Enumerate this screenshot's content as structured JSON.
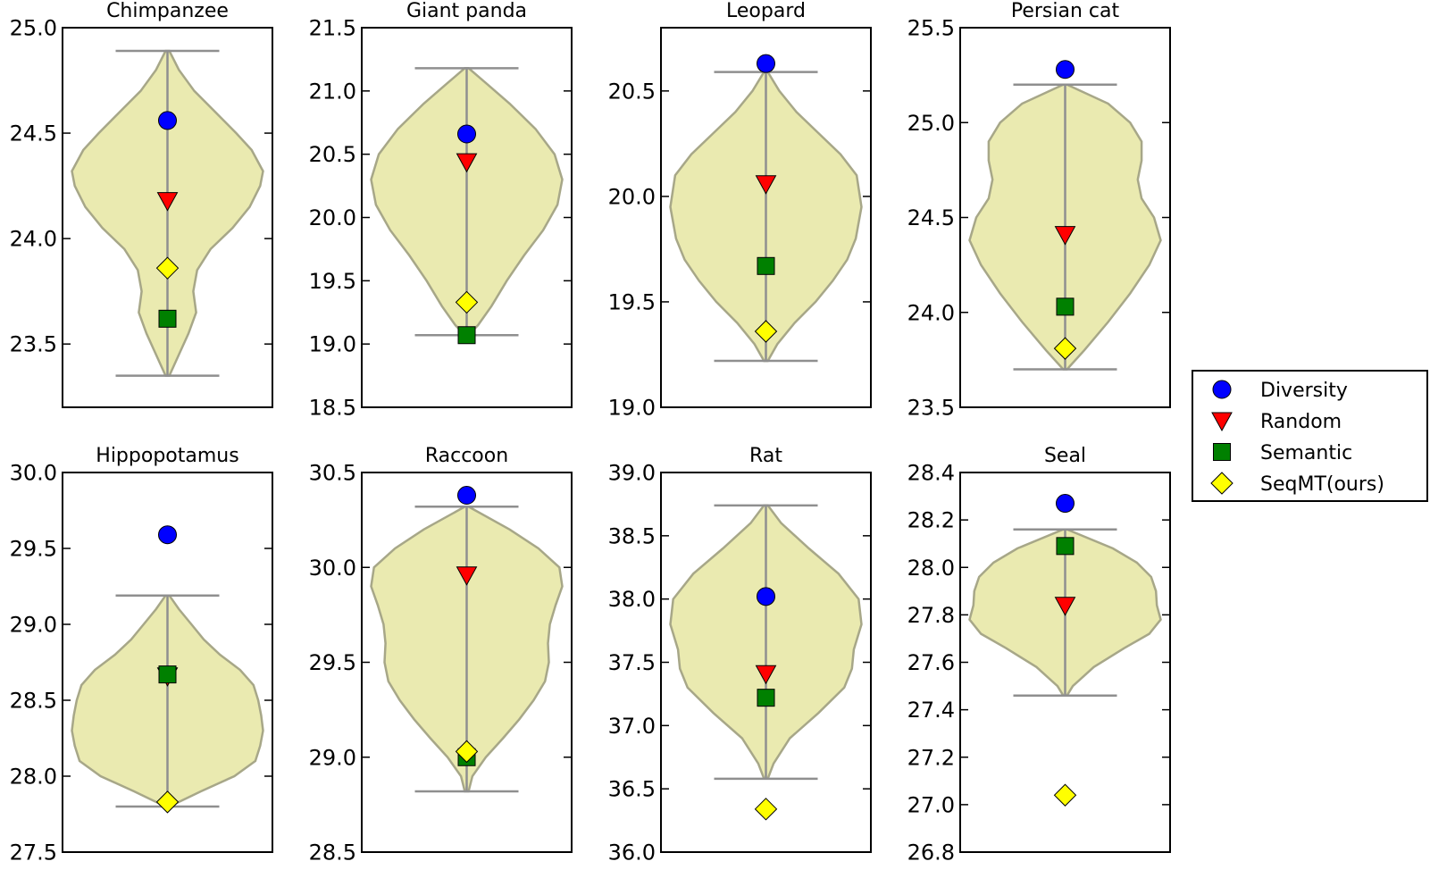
{
  "legend": {
    "entries": [
      {
        "label": "Diversity",
        "marker": "circle",
        "color": "#0000ff"
      },
      {
        "label": "Random",
        "marker": "triangle-down",
        "color": "#ff0000"
      },
      {
        "label": "Semantic",
        "marker": "square",
        "color": "#008000"
      },
      {
        "label": "SeqMT(ours)",
        "marker": "diamond",
        "color": "#ffff00"
      }
    ]
  },
  "chart_data": [
    {
      "type": "violin",
      "title": "Chimpanzee",
      "ylim": [
        23.2,
        25.0
      ],
      "yticks": [
        23.5,
        24.0,
        24.5,
        25.0
      ],
      "tick_decimals": 1,
      "distribution": {
        "min": 23.35,
        "max": 24.89,
        "profile": [
          [
            23.35,
            0.02
          ],
          [
            23.45,
            0.12
          ],
          [
            23.55,
            0.22
          ],
          [
            23.65,
            0.3
          ],
          [
            23.75,
            0.27
          ],
          [
            23.85,
            0.31
          ],
          [
            23.95,
            0.45
          ],
          [
            24.05,
            0.68
          ],
          [
            24.15,
            0.86
          ],
          [
            24.25,
            0.97
          ],
          [
            24.32,
            1.0
          ],
          [
            24.42,
            0.88
          ],
          [
            24.5,
            0.72
          ],
          [
            24.6,
            0.5
          ],
          [
            24.7,
            0.28
          ],
          [
            24.8,
            0.12
          ],
          [
            24.89,
            0.02
          ]
        ]
      },
      "points": {
        "Diversity": 24.56,
        "Random": 24.18,
        "Semantic": 23.62,
        "SeqMT(ours)": 23.86
      }
    },
    {
      "type": "violin",
      "title": "Giant panda",
      "ylim": [
        18.5,
        21.5
      ],
      "yticks": [
        18.5,
        19.0,
        19.5,
        20.0,
        20.5,
        21.0,
        21.5
      ],
      "tick_decimals": 1,
      "distribution": {
        "min": 19.07,
        "max": 21.18,
        "profile": [
          [
            19.07,
            0.02
          ],
          [
            19.15,
            0.12
          ],
          [
            19.3,
            0.26
          ],
          [
            19.5,
            0.42
          ],
          [
            19.7,
            0.6
          ],
          [
            19.9,
            0.8
          ],
          [
            20.1,
            0.95
          ],
          [
            20.3,
            1.0
          ],
          [
            20.5,
            0.92
          ],
          [
            20.7,
            0.72
          ],
          [
            20.9,
            0.45
          ],
          [
            21.05,
            0.22
          ],
          [
            21.18,
            0.02
          ]
        ]
      },
      "points": {
        "Diversity": 20.66,
        "Random": 20.44,
        "Semantic": 19.07,
        "SeqMT(ours)": 19.33
      }
    },
    {
      "type": "violin",
      "title": "Leopard",
      "ylim": [
        19.0,
        20.8
      ],
      "yticks": [
        19.0,
        19.5,
        20.0,
        20.5
      ],
      "tick_decimals": 1,
      "distribution": {
        "min": 19.22,
        "max": 20.59,
        "profile": [
          [
            19.22,
            0.02
          ],
          [
            19.3,
            0.12
          ],
          [
            19.4,
            0.3
          ],
          [
            19.5,
            0.52
          ],
          [
            19.6,
            0.7
          ],
          [
            19.7,
            0.85
          ],
          [
            19.8,
            0.94
          ],
          [
            19.95,
            1.0
          ],
          [
            20.1,
            0.95
          ],
          [
            20.2,
            0.78
          ],
          [
            20.3,
            0.55
          ],
          [
            20.4,
            0.32
          ],
          [
            20.5,
            0.14
          ],
          [
            20.59,
            0.02
          ]
        ]
      },
      "points": {
        "Diversity": 20.63,
        "Random": 20.06,
        "Semantic": 19.67,
        "SeqMT(ours)": 19.36
      }
    },
    {
      "type": "violin",
      "title": "Persian cat",
      "ylim": [
        23.5,
        25.5
      ],
      "yticks": [
        23.5,
        24.0,
        24.5,
        25.0,
        25.5
      ],
      "tick_decimals": 1,
      "distribution": {
        "min": 23.7,
        "max": 25.2,
        "profile": [
          [
            23.7,
            0.02
          ],
          [
            23.8,
            0.2
          ],
          [
            23.95,
            0.45
          ],
          [
            24.1,
            0.68
          ],
          [
            24.25,
            0.88
          ],
          [
            24.38,
            1.0
          ],
          [
            24.5,
            0.93
          ],
          [
            24.6,
            0.8
          ],
          [
            24.7,
            0.76
          ],
          [
            24.8,
            0.8
          ],
          [
            24.9,
            0.8
          ],
          [
            25.0,
            0.68
          ],
          [
            25.1,
            0.45
          ],
          [
            25.2,
            0.02
          ]
        ]
      },
      "points": {
        "Diversity": 25.28,
        "Random": 24.41,
        "Semantic": 24.03,
        "SeqMT(ours)": 23.81
      }
    },
    {
      "type": "violin",
      "title": "Hippopotamus",
      "ylim": [
        27.5,
        30.0
      ],
      "yticks": [
        27.5,
        28.0,
        28.5,
        29.0,
        29.5,
        30.0
      ],
      "tick_decimals": 1,
      "distribution": {
        "min": 27.8,
        "max": 29.19,
        "profile": [
          [
            27.8,
            0.02
          ],
          [
            27.9,
            0.35
          ],
          [
            28.0,
            0.7
          ],
          [
            28.1,
            0.92
          ],
          [
            28.2,
            0.97
          ],
          [
            28.3,
            1.0
          ],
          [
            28.4,
            0.98
          ],
          [
            28.5,
            0.95
          ],
          [
            28.6,
            0.9
          ],
          [
            28.7,
            0.76
          ],
          [
            28.8,
            0.55
          ],
          [
            28.9,
            0.38
          ],
          [
            29.0,
            0.25
          ],
          [
            29.1,
            0.12
          ],
          [
            29.19,
            0.02
          ]
        ]
      },
      "points": {
        "Diversity": 29.59,
        "Random": 28.66,
        "Semantic": 28.67,
        "SeqMT(ours)": 27.83
      }
    },
    {
      "type": "violin",
      "title": "Raccoon",
      "ylim": [
        28.5,
        30.5
      ],
      "yticks": [
        28.5,
        29.0,
        29.5,
        30.0,
        30.5
      ],
      "tick_decimals": 1,
      "distribution": {
        "min": 28.82,
        "max": 30.32,
        "profile": [
          [
            28.82,
            0.02
          ],
          [
            28.9,
            0.06
          ],
          [
            29.0,
            0.2
          ],
          [
            29.1,
            0.38
          ],
          [
            29.2,
            0.55
          ],
          [
            29.3,
            0.7
          ],
          [
            29.4,
            0.82
          ],
          [
            29.5,
            0.86
          ],
          [
            29.6,
            0.85
          ],
          [
            29.7,
            0.87
          ],
          [
            29.8,
            0.93
          ],
          [
            29.9,
            1.0
          ],
          [
            30.0,
            0.97
          ],
          [
            30.1,
            0.75
          ],
          [
            30.2,
            0.45
          ],
          [
            30.32,
            0.02
          ]
        ]
      },
      "points": {
        "Diversity": 30.38,
        "Random": 29.96,
        "Semantic": 29.0,
        "SeqMT(ours)": 29.03
      }
    },
    {
      "type": "violin",
      "title": "Rat",
      "ylim": [
        36.0,
        39.0
      ],
      "yticks": [
        36.0,
        36.5,
        37.0,
        37.5,
        38.0,
        38.5,
        39.0
      ],
      "tick_decimals": 1,
      "distribution": {
        "min": 36.58,
        "max": 38.74,
        "profile": [
          [
            36.58,
            0.02
          ],
          [
            36.7,
            0.08
          ],
          [
            36.9,
            0.25
          ],
          [
            37.1,
            0.55
          ],
          [
            37.3,
            0.82
          ],
          [
            37.45,
            0.9
          ],
          [
            37.6,
            0.92
          ],
          [
            37.8,
            1.0
          ],
          [
            38.0,
            0.97
          ],
          [
            38.2,
            0.76
          ],
          [
            38.4,
            0.45
          ],
          [
            38.6,
            0.16
          ],
          [
            38.74,
            0.02
          ]
        ]
      },
      "points": {
        "Diversity": 38.02,
        "Random": 37.41,
        "Semantic": 37.22,
        "SeqMT(ours)": 36.34
      }
    },
    {
      "type": "violin",
      "title": "Seal",
      "ylim": [
        26.8,
        28.4
      ],
      "yticks": [
        26.8,
        27.0,
        27.2,
        27.4,
        27.6,
        27.8,
        28.0,
        28.2,
        28.4
      ],
      "tick_decimals": 1,
      "distribution": {
        "min": 27.46,
        "max": 28.16,
        "profile": [
          [
            27.46,
            0.02
          ],
          [
            27.5,
            0.08
          ],
          [
            27.58,
            0.3
          ],
          [
            27.66,
            0.62
          ],
          [
            27.72,
            0.88
          ],
          [
            27.78,
            1.0
          ],
          [
            27.84,
            0.96
          ],
          [
            27.9,
            0.95
          ],
          [
            27.96,
            0.9
          ],
          [
            28.02,
            0.75
          ],
          [
            28.08,
            0.5
          ],
          [
            28.16,
            0.02
          ]
        ]
      },
      "points": {
        "Diversity": 28.27,
        "Random": 27.84,
        "Semantic": 28.09,
        "SeqMT(ours)": 27.04
      }
    }
  ]
}
